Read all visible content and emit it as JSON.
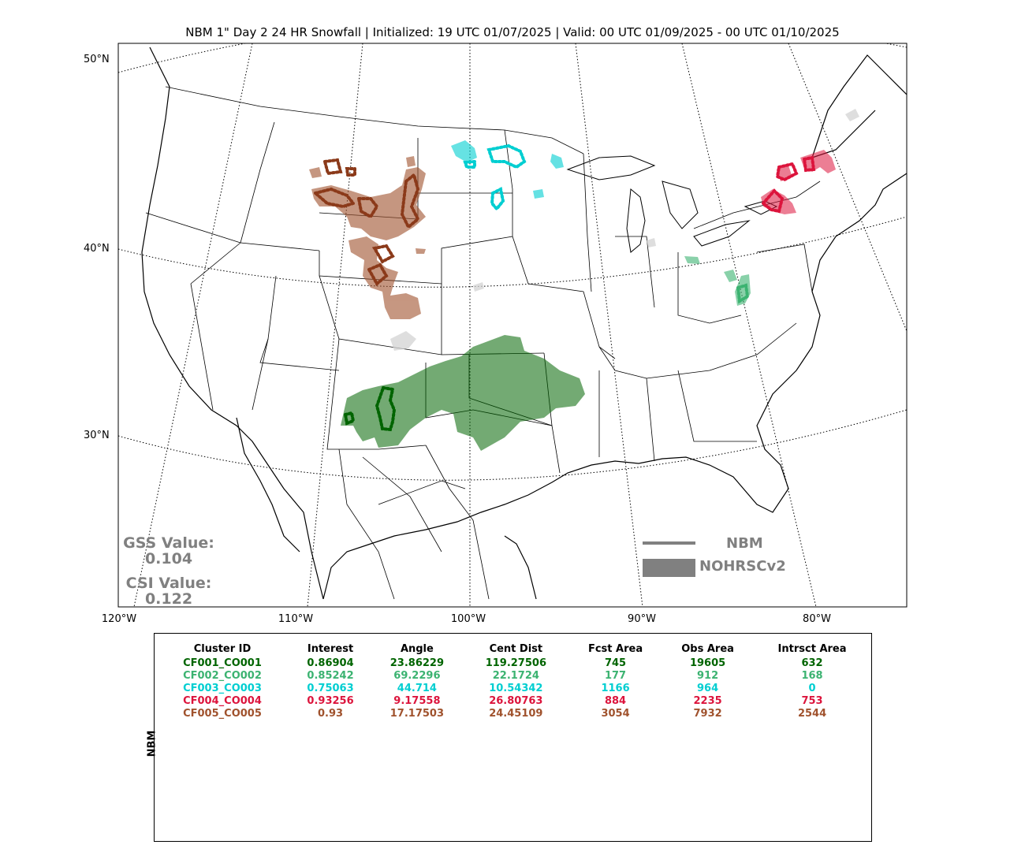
{
  "title": "NBM 1\" Day 2 24 HR Snowfall | Initialized: 19 UTC 01/07/2025 | Valid: 00 UTC 01/09/2025 - 00 UTC 01/10/2025",
  "map": {
    "lat_labels": [
      "50°N",
      "40°N",
      "30°N"
    ],
    "lon_labels": [
      "120°W",
      "110°W",
      "100°W",
      "90°W",
      "80°W"
    ],
    "colors": {
      "cluster1": "#006400",
      "cluster2": "#3cb371",
      "cluster3": "#00ced1",
      "cluster4": "#dc143c",
      "cluster5": "#a0522d",
      "unmatched": "#d3d3d3"
    }
  },
  "stats": {
    "gss_label": "GSS Value:",
    "gss_value": "0.104",
    "csi_label": "CSI Value:",
    "csi_value": "0.122"
  },
  "legend": {
    "line_label": "NBM",
    "fill_label": "NOHRSCv2",
    "color": "#808080"
  },
  "table": {
    "side_label": "NBM",
    "headers": [
      "Cluster ID",
      "Interest",
      "Angle",
      "Cent Dist",
      "Fcst Area",
      "Obs Area",
      "Intrsct Area"
    ],
    "rows": [
      {
        "color": "#006400",
        "cells": [
          "CF001_CO001",
          "0.86904",
          "23.86229",
          "119.27506",
          "745",
          "19605",
          "632"
        ]
      },
      {
        "color": "#3cb371",
        "cells": [
          "CF002_CO002",
          "0.85242",
          "69.2296",
          "22.1724",
          "177",
          "912",
          "168"
        ]
      },
      {
        "color": "#00ced1",
        "cells": [
          "CF003_CO003",
          "0.75063",
          "44.714",
          "10.54342",
          "1166",
          "964",
          "0"
        ]
      },
      {
        "color": "#dc143c",
        "cells": [
          "CF004_CO004",
          "0.93256",
          "9.17558",
          "26.80763",
          "884",
          "2235",
          "753"
        ]
      },
      {
        "color": "#a0522d",
        "cells": [
          "CF005_CO005",
          "0.93",
          "17.17503",
          "24.45109",
          "3054",
          "7932",
          "2544"
        ]
      }
    ]
  }
}
